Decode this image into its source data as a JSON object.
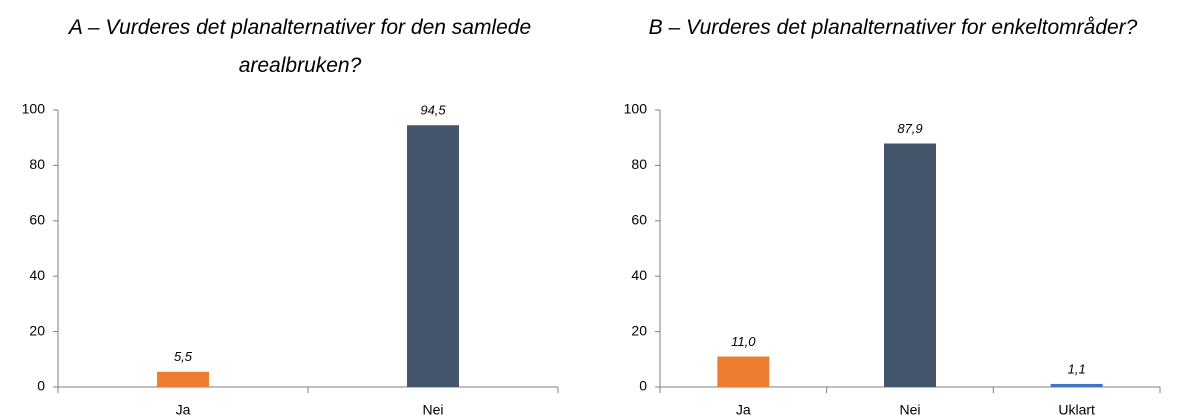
{
  "chart_data": [
    {
      "type": "bar",
      "title": "A – Vurderes det planalternativer for den samlede arealbruken?",
      "categories": [
        "Ja",
        "Nei"
      ],
      "values": [
        5.5,
        94.5
      ],
      "value_labels": [
        "5,5",
        "94,5"
      ],
      "colors": [
        "#ed7d31",
        "#44546a"
      ],
      "ylim": [
        0,
        100
      ],
      "yticks": [
        0,
        20,
        40,
        60,
        80,
        100
      ],
      "grid": false
    },
    {
      "type": "bar",
      "title": "B – Vurderes det planalternativer for enkeltområder?",
      "categories": [
        "Ja",
        "Nei",
        "Uklart"
      ],
      "values": [
        11.0,
        87.9,
        1.1
      ],
      "value_labels": [
        "11,0",
        "87,9",
        "1,1"
      ],
      "colors": [
        "#ed7d31",
        "#44546a",
        "#4472c4"
      ],
      "ylim": [
        0,
        100
      ],
      "yticks": [
        0,
        20,
        40,
        60,
        80,
        100
      ],
      "grid": false
    }
  ]
}
